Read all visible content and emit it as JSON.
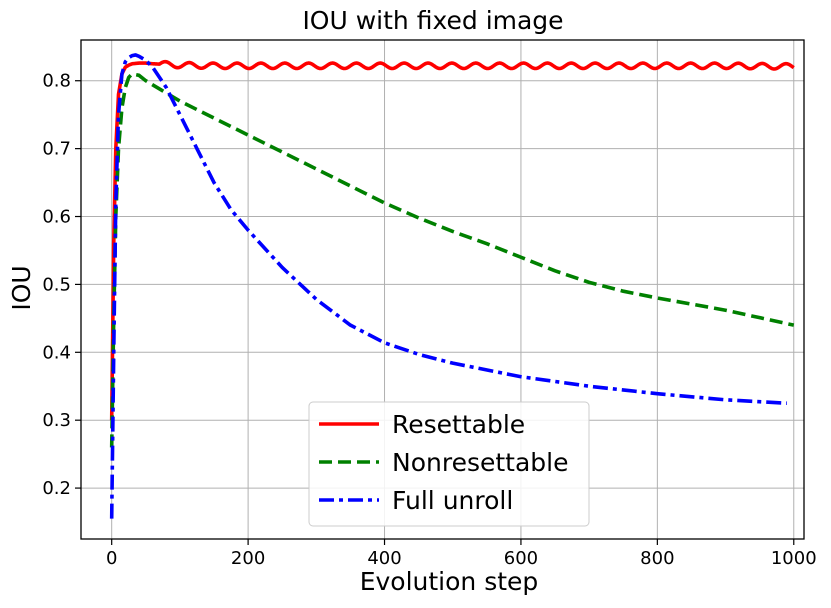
{
  "chart_data": {
    "type": "line",
    "title": "IOU with fixed image",
    "xlabel": "Evolution step",
    "ylabel": "IOU",
    "xlim": [
      -45,
      1015
    ],
    "ylim": [
      0.125,
      0.86
    ],
    "xticks": [
      0,
      200,
      400,
      600,
      800,
      1000
    ],
    "yticks": [
      0.2,
      0.3,
      0.4,
      0.5,
      0.6,
      0.7,
      0.8
    ],
    "grid": true,
    "legend_position": "lower-center",
    "series": [
      {
        "name": "Resettable",
        "color": "#ff0000",
        "style": "solid",
        "oscillation": {
          "amplitude": 0.004,
          "period": 35,
          "start": 70
        },
        "x": [
          0,
          3,
          6,
          10,
          15,
          20,
          25,
          30,
          40,
          50,
          60,
          80,
          100,
          150,
          200,
          300,
          400,
          500,
          600,
          700,
          800,
          900,
          1000
        ],
        "y": [
          0.3,
          0.56,
          0.7,
          0.78,
          0.81,
          0.82,
          0.823,
          0.825,
          0.826,
          0.826,
          0.825,
          0.824,
          0.823,
          0.822,
          0.822,
          0.822,
          0.822,
          0.822,
          0.822,
          0.822,
          0.822,
          0.822,
          0.821
        ]
      },
      {
        "name": "Nonresettable",
        "color": "#008000",
        "style": "dashed",
        "x": [
          0,
          3,
          6,
          10,
          15,
          20,
          25,
          30,
          40,
          50,
          75,
          100,
          150,
          200,
          250,
          300,
          350,
          400,
          450,
          500,
          550,
          600,
          650,
          700,
          750,
          800,
          850,
          900,
          950,
          1000
        ],
        "y": [
          0.26,
          0.45,
          0.6,
          0.7,
          0.76,
          0.79,
          0.805,
          0.81,
          0.808,
          0.8,
          0.785,
          0.77,
          0.745,
          0.72,
          0.695,
          0.67,
          0.645,
          0.62,
          0.598,
          0.578,
          0.56,
          0.54,
          0.52,
          0.503,
          0.49,
          0.48,
          0.471,
          0.462,
          0.451,
          0.44
        ]
      },
      {
        "name": "Full unroll",
        "color": "#0000ff",
        "style": "dashdot",
        "x": [
          0,
          3,
          6,
          10,
          15,
          20,
          25,
          30,
          35,
          40,
          50,
          60,
          80,
          100,
          125,
          150,
          175,
          200,
          250,
          300,
          350,
          400,
          450,
          500,
          600,
          700,
          800,
          900,
          990
        ],
        "y": [
          0.155,
          0.4,
          0.62,
          0.75,
          0.81,
          0.828,
          0.834,
          0.837,
          0.838,
          0.836,
          0.83,
          0.82,
          0.79,
          0.75,
          0.7,
          0.65,
          0.61,
          0.58,
          0.525,
          0.478,
          0.44,
          0.414,
          0.397,
          0.384,
          0.364,
          0.35,
          0.339,
          0.33,
          0.325
        ]
      }
    ]
  }
}
